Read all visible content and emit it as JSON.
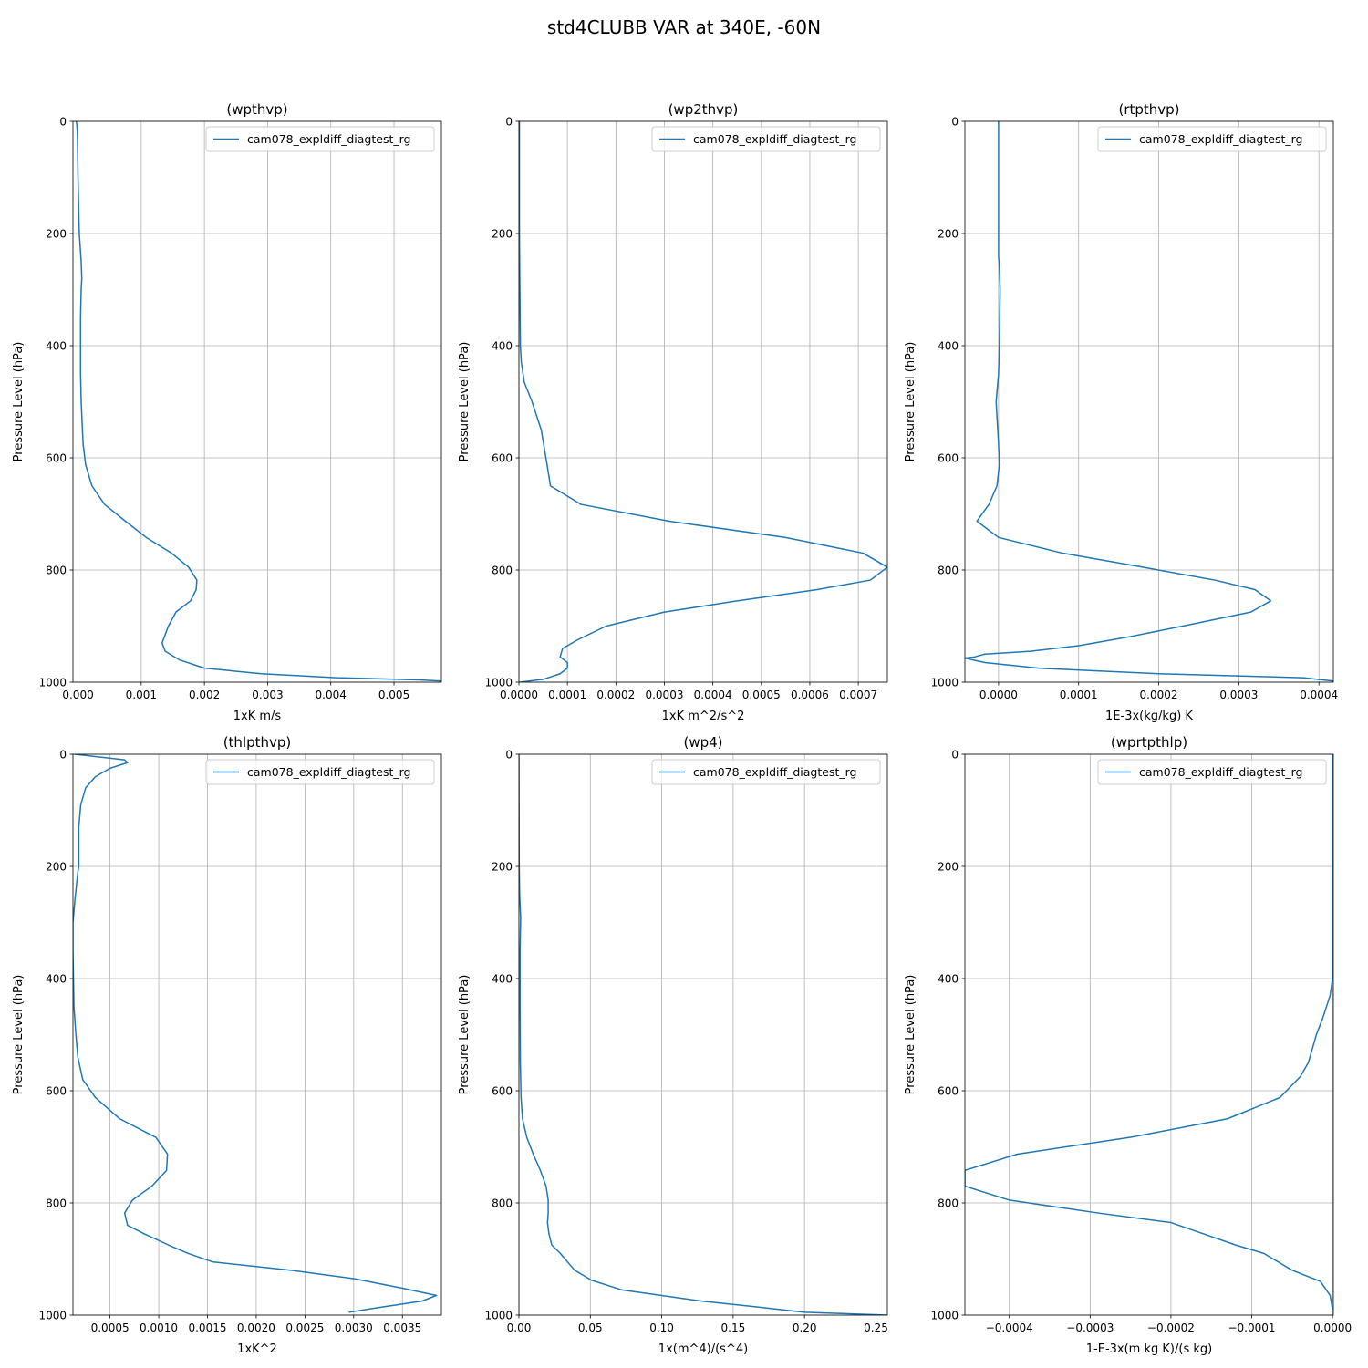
{
  "figure": {
    "title": "std4CLUBB VAR at 340E, -60N"
  },
  "chart_data": [
    {
      "type": "line",
      "title": "(wpthvp)",
      "xlabel": "1xK m/s",
      "ylabel": "Pressure Level (hPa)",
      "xlim": [
        -8e-05,
        0.00575
      ],
      "ylim": [
        1000,
        0
      ],
      "y_inverted": true,
      "grid": true,
      "legend": "top-right",
      "xticks": [
        0.0,
        0.001,
        0.002,
        0.003,
        0.004,
        0.005
      ],
      "xtick_labels": [
        "0.000",
        "0.001",
        "0.002",
        "0.003",
        "0.004",
        "0.005"
      ],
      "yticks": [
        0,
        200,
        400,
        600,
        800,
        1000
      ],
      "ytick_labels": [
        "0",
        "200",
        "400",
        "600",
        "800",
        "1000"
      ],
      "series": [
        {
          "name": "cam078_expldiff_diagtest_rg",
          "x": [
            -3e-05,
            -2e-05,
            -1e-05,
            0.0,
            2e-05,
            5e-05,
            6e-05,
            5e-05,
            4e-05,
            4e-05,
            4e-05,
            5e-05,
            8e-05,
            0.00012,
            0.00022,
            0.00042,
            0.00075,
            0.00108,
            0.00148,
            0.00175,
            0.00188,
            0.00187,
            0.00178,
            0.00155,
            0.00143,
            0.00133,
            0.00138,
            0.0016,
            0.002,
            0.0029,
            0.0041,
            0.0054,
            0.00575
          ],
          "y": [
            0,
            5,
            20,
            100,
            200,
            250,
            280,
            300,
            350,
            400,
            450,
            500,
            575,
            612,
            650,
            683,
            713,
            742,
            770,
            795,
            818,
            835,
            855,
            875,
            900,
            930,
            945,
            960,
            975,
            985,
            992,
            996,
            998
          ]
        }
      ]
    },
    {
      "type": "line",
      "title": "(wp2thvp)",
      "xlabel": "1xK m^2/s^2",
      "ylabel": "Pressure Level (hPa)",
      "xlim": [
        0.0,
        0.00076
      ],
      "ylim": [
        1000,
        0
      ],
      "y_inverted": true,
      "grid": true,
      "legend": "top-right",
      "xticks": [
        0.0,
        0.0001,
        0.0002,
        0.0003,
        0.0004,
        0.0005,
        0.0006,
        0.0007
      ],
      "xtick_labels": [
        "0.0000",
        "0.0001",
        "0.0002",
        "0.0003",
        "0.0004",
        "0.0005",
        "0.0006",
        "0.0007"
      ],
      "yticks": [
        0,
        200,
        400,
        600,
        800,
        1000
      ],
      "ytick_labels": [
        "0",
        "200",
        "400",
        "600",
        "800",
        "1000"
      ],
      "series": [
        {
          "name": "cam078_expldiff_diagtest_rg",
          "x": [
            1e-06,
            1e-06,
            1e-06,
            2e-06,
            3e-06,
            5e-06,
            1.1e-05,
            2.7e-05,
            4.6e-05,
            5.8e-05,
            6.5e-05,
            0.000128,
            0.00031,
            0.00055,
            0.00071,
            0.00076,
            0.000725,
            0.000615,
            0.00045,
            0.0003,
            0.00018,
            0.00012,
            9e-05,
            8.5e-05,
            0.0001,
            0.0001,
            8.5e-05,
            5e-05,
            2e-06
          ],
          "y": [
            0,
            100,
            200,
            300,
            400,
            430,
            465,
            500,
            550,
            612,
            650,
            683,
            713,
            742,
            770,
            795,
            818,
            835,
            855,
            875,
            900,
            925,
            940,
            955,
            965,
            975,
            985,
            995,
            1000
          ]
        }
      ]
    },
    {
      "type": "line",
      "title": "(rtpthvp)",
      "xlabel": "1E-3x(kg/kg) K",
      "ylabel": "Pressure Level (hPa)",
      "xlim": [
        -4.2e-05,
        0.000418
      ],
      "ylim": [
        1000,
        0
      ],
      "y_inverted": true,
      "grid": true,
      "legend": "top-right",
      "xticks": [
        0.0,
        0.0001,
        0.0002,
        0.0003,
        0.0004
      ],
      "xtick_labels": [
        "0.0000",
        "0.0001",
        "0.0002",
        "0.0003",
        "0.0004"
      ],
      "yticks": [
        0,
        200,
        400,
        600,
        800,
        1000
      ],
      "ytick_labels": [
        "0",
        "200",
        "400",
        "600",
        "800",
        "1000"
      ],
      "series": [
        {
          "name": "cam078_expldiff_diagtest_rg",
          "x": [
            0.0,
            0.0,
            0.0,
            0.0,
            1e-06,
            2e-06,
            1e-06,
            0.0,
            -3e-06,
            0.0,
            1e-06,
            -2e-06,
            -1.2e-05,
            -2.7e-05,
            0.0,
            8e-05,
            0.00018,
            0.00027,
            0.00032,
            0.00034,
            0.000315,
            0.00023,
            0.00016,
            0.0001,
            4e-05,
            -1.7e-05,
            -3e-05,
            -4.2e-05,
            -1.7e-05,
            5e-05,
            0.0002,
            0.00038,
            0.000418
          ],
          "y": [
            0,
            100,
            200,
            240,
            260,
            300,
            400,
            450,
            500,
            575,
            612,
            650,
            683,
            713,
            742,
            770,
            795,
            818,
            835,
            855,
            875,
            900,
            920,
            935,
            945,
            950,
            955,
            957,
            965,
            975,
            985,
            992,
            998
          ]
        }
      ]
    },
    {
      "type": "line",
      "title": "(thlpthvp)",
      "xlabel": "1xK^2",
      "ylabel": "Pressure Level (hPa)",
      "xlim": [
        0.00012,
        0.0039
      ],
      "ylim": [
        1000,
        0
      ],
      "y_inverted": true,
      "grid": true,
      "legend": "top-right",
      "xticks": [
        0.0005,
        0.001,
        0.0015,
        0.002,
        0.0025,
        0.003,
        0.0035
      ],
      "xtick_labels": [
        "0.0005",
        "0.0010",
        "0.0015",
        "0.0020",
        "0.0025",
        "0.0030",
        "0.0035"
      ],
      "yticks": [
        0,
        200,
        400,
        600,
        800,
        1000
      ],
      "ytick_labels": [
        "0",
        "200",
        "400",
        "600",
        "800",
        "1000"
      ],
      "series": [
        {
          "name": "cam078_expldiff_diagtest_rg",
          "x": [
            0.00014,
            0.00065,
            0.00068,
            0.0005,
            0.00035,
            0.00025,
            0.0002,
            0.00018,
            0.00018,
            0.00018,
            0.00017,
            0.00014,
            0.00012,
            0.00012,
            0.00013,
            0.00015,
            0.00017,
            0.00022,
            0.00035,
            0.0006,
            0.00097,
            0.00109,
            0.00108,
            0.00093,
            0.00073,
            0.00065,
            0.00068,
            0.00085,
            0.0011,
            0.0013,
            0.00155,
            0.00235,
            0.003,
            0.0035,
            0.00385,
            0.0037,
            0.0032,
            0.00295
          ],
          "y": [
            0,
            10,
            15,
            25,
            40,
            60,
            90,
            130,
            175,
            200,
            210,
            260,
            300,
            350,
            450,
            500,
            540,
            580,
            612,
            650,
            683,
            713,
            742,
            770,
            795,
            818,
            840,
            855,
            875,
            890,
            905,
            920,
            935,
            952,
            965,
            975,
            988,
            995
          ]
        }
      ]
    },
    {
      "type": "line",
      "title": "(wp4)",
      "xlabel": "1x(m^4)/(s^4)",
      "ylabel": "Pressure Level (hPa)",
      "xlim": [
        0.0,
        0.258
      ],
      "ylim": [
        1000,
        0
      ],
      "y_inverted": true,
      "grid": true,
      "legend": "top-right",
      "xticks": [
        0.0,
        0.05,
        0.1,
        0.15,
        0.2,
        0.25
      ],
      "xtick_labels": [
        "0.00",
        "0.05",
        "0.10",
        "0.15",
        "0.20",
        "0.25"
      ],
      "yticks": [
        0,
        200,
        400,
        600,
        800,
        1000
      ],
      "ytick_labels": [
        "0",
        "200",
        "400",
        "600",
        "800",
        "1000"
      ],
      "series": [
        {
          "name": "cam078_expldiff_diagtest_rg",
          "x": [
            0.0,
            0.0002,
            0.0005,
            0.0012,
            0.001,
            0.0008,
            0.0008,
            0.0008,
            0.0009,
            0.001,
            0.0015,
            0.0025,
            0.0055,
            0.01,
            0.015,
            0.019,
            0.0205,
            0.0205,
            0.02,
            0.021,
            0.023,
            0.029,
            0.039,
            0.051,
            0.072,
            0.1,
            0.128,
            0.165,
            0.2,
            0.235,
            0.258
          ],
          "y": [
            0,
            200,
            250,
            290,
            320,
            350,
            400,
            450,
            500,
            550,
            612,
            650,
            683,
            713,
            742,
            770,
            795,
            818,
            835,
            855,
            875,
            890,
            920,
            938,
            955,
            965,
            975,
            985,
            995,
            998,
            1000
          ]
        }
      ]
    },
    {
      "type": "line",
      "title": "(wprtpthlp)",
      "xlabel": "1-E-3x(m kg K)/(s kg)",
      "ylabel": "Pressure Level (hPa)",
      "xlim": [
        -0.000455,
        1e-06
      ],
      "ylim": [
        1000,
        0
      ],
      "y_inverted": true,
      "grid": true,
      "legend": "top-right",
      "xticks": [
        -0.0004,
        -0.0003,
        -0.0002,
        -0.0001,
        0.0
      ],
      "xtick_labels": [
        "−0.0004",
        "−0.0003",
        "−0.0002",
        "−0.0001",
        "0.0000"
      ],
      "yticks": [
        0,
        200,
        400,
        600,
        800,
        1000
      ],
      "ytick_labels": [
        "0",
        "200",
        "400",
        "600",
        "800",
        "1000"
      ],
      "series": [
        {
          "name": "cam078_expldiff_diagtest_rg",
          "x": [
            0.0,
            0.0,
            0.0,
            0.0,
            -3e-06,
            -1.2e-05,
            -2e-05,
            -3e-05,
            -4e-05,
            -6.5e-05,
            -0.00013,
            -0.00025,
            -0.00039,
            -0.000455,
            -0.000455,
            -0.0004,
            -0.00029,
            -0.0002,
            -0.00016,
            -0.00012,
            -8.5e-05,
            -5e-05,
            -1.5e-05,
            -3e-06,
            0.0
          ],
          "y": [
            0,
            200,
            300,
            400,
            430,
            470,
            500,
            550,
            575,
            612,
            650,
            683,
            713,
            742,
            770,
            795,
            818,
            835,
            855,
            875,
            890,
            920,
            940,
            965,
            990
          ]
        }
      ]
    }
  ]
}
